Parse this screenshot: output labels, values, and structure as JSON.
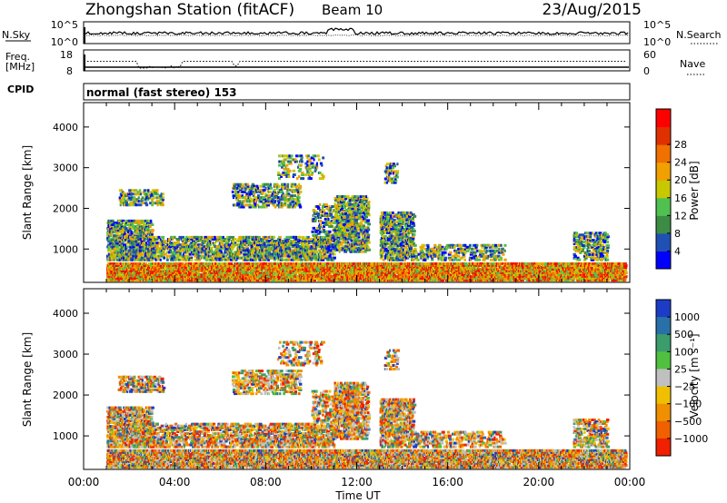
{
  "header": {
    "title": "Zhongshan Station (fitACF)",
    "beam": "Beam 10",
    "date": "23/Aug/2015"
  },
  "noise_panel": {
    "left_label": "N.Sky",
    "left_ticks": [
      "10^5",
      "10^0"
    ],
    "right_ticks": [
      "10^5",
      "10^0"
    ],
    "right_label": "N.Search"
  },
  "freq_panel": {
    "left_label_1": "Freq.",
    "left_label_2": "[MHz]",
    "left_ticks": [
      "18",
      "8"
    ],
    "right_ticks": [
      "60",
      "0"
    ],
    "right_label": "Nave"
  },
  "cpid_panel": {
    "label": "CPID",
    "text": "normal (fast stereo) 153"
  },
  "chart_data": [
    {
      "type": "heatmap",
      "panel": "power",
      "ylabel": "Slant Range [km]",
      "y_ticks": [
        "1000",
        "2000",
        "3000",
        "4000"
      ],
      "ylim": [
        180,
        4600
      ],
      "xlim": [
        0,
        24
      ],
      "colorbar": {
        "label": "Power [dB]",
        "ticks": [
          "4",
          "8",
          "12",
          "16",
          "20",
          "24",
          "28"
        ],
        "colors": [
          "#0000ff",
          "#2050b4",
          "#3c8c46",
          "#50c050",
          "#c8c800",
          "#f0a000",
          "#f07000",
          "#e03000",
          "#ff0000"
        ]
      }
    },
    {
      "type": "heatmap",
      "panel": "velocity",
      "ylabel": "Slant Range [km]",
      "y_ticks": [
        "1000",
        "2000",
        "3000",
        "4000"
      ],
      "ylim": [
        180,
        4600
      ],
      "xlim": [
        0,
        24
      ],
      "xlabel": "Time UT",
      "x_ticks": [
        "00:00",
        "04:00",
        "08:00",
        "12:00",
        "16:00",
        "20:00",
        "00:00"
      ],
      "colorbar": {
        "label": "Velocity [m s⁻¹]",
        "ticks": [
          "1000",
          "500",
          "100",
          "25",
          "−25",
          "−100",
          "−500",
          "−1000"
        ],
        "colors": [
          "#1c3cc8",
          "#2870a8",
          "#3c9c6c",
          "#50c040",
          "#c0c0c0",
          "#f0c000",
          "#f09000",
          "#f06000",
          "#f02000"
        ]
      }
    }
  ]
}
